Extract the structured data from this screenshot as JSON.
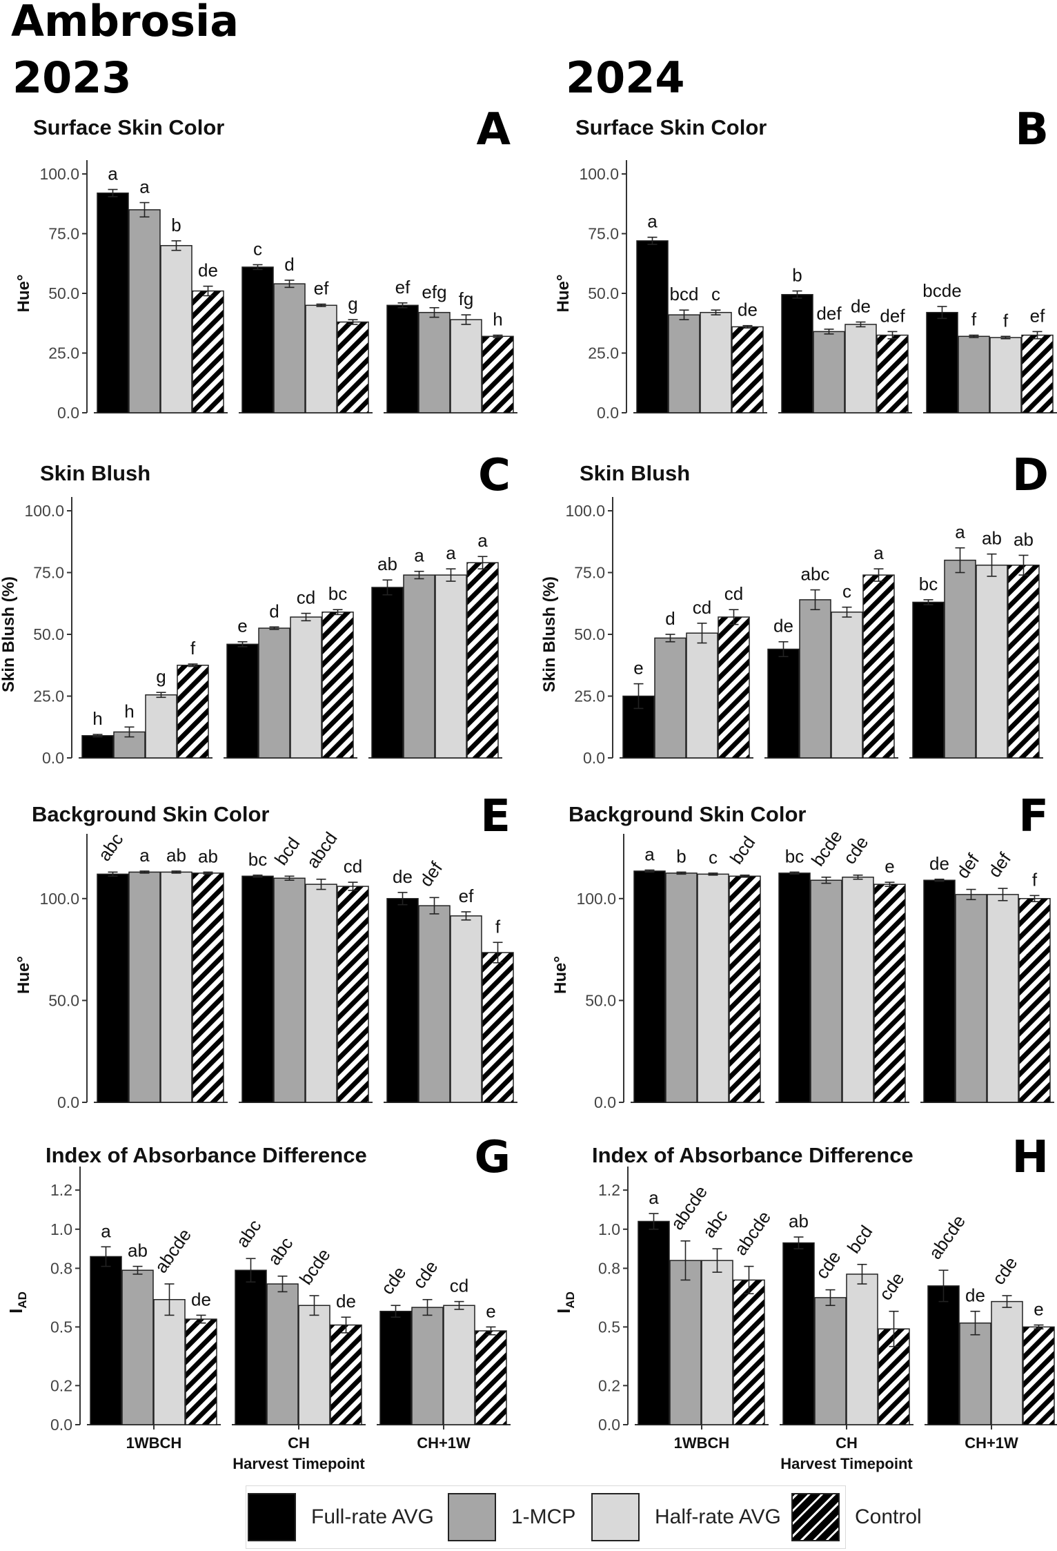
{
  "figure": {
    "cultivar": "Ambrosia",
    "year_left": "2023",
    "year_right": "2024"
  },
  "legend": {
    "items": [
      {
        "label": "Full-rate AVG",
        "fill": "#000000"
      },
      {
        "label": "1-MCP",
        "fill": "#a6a6a6"
      },
      {
        "label": "Half-rate AVG",
        "fill": "#d9d9d9"
      },
      {
        "label": "Control",
        "fill": "hatch"
      }
    ]
  },
  "colors": {
    "full_rate_avg": "#000000",
    "mcp": "#a6a6a6",
    "half_rate_avg": "#d9d9d9",
    "control": "hatch"
  },
  "chart_data": [
    {
      "id": "A",
      "type": "bar",
      "title": "Surface Skin Color",
      "ylabel": "Hue°",
      "ylim": [
        0,
        100
      ],
      "yticks": [
        0,
        25,
        50,
        75,
        100
      ],
      "tick_format": "0.0",
      "groups": [
        "1WBCH",
        "CH",
        "CH+1W"
      ],
      "show_xlabels": false,
      "label_rotate": false,
      "series": [
        {
          "name": "Full-rate AVG",
          "values": [
            92,
            61,
            45
          ],
          "errors": [
            1.5,
            1,
            1
          ],
          "letters": [
            "a",
            "c",
            "ef"
          ]
        },
        {
          "name": "1-MCP",
          "values": [
            85,
            54,
            42
          ],
          "errors": [
            3,
            1.5,
            2
          ],
          "letters": [
            "a",
            "d",
            "efg"
          ]
        },
        {
          "name": "Half-rate AVG",
          "values": [
            70,
            45,
            39
          ],
          "errors": [
            2,
            0.5,
            2
          ],
          "letters": [
            "b",
            "ef",
            "fg"
          ]
        },
        {
          "name": "Control",
          "values": [
            51,
            38,
            32
          ],
          "errors": [
            2,
            1,
            0.5
          ],
          "letters": [
            "de",
            "g",
            "h"
          ]
        }
      ]
    },
    {
      "id": "B",
      "type": "bar",
      "title": "Surface Skin Color",
      "ylabel": "Hue°",
      "ylim": [
        0,
        100
      ],
      "yticks": [
        0,
        25,
        50,
        75,
        100
      ],
      "tick_format": "0.0",
      "groups": [
        "1WBCH",
        "CH",
        "CH+1W"
      ],
      "show_xlabels": false,
      "label_rotate": false,
      "series": [
        {
          "name": "Full-rate AVG",
          "values": [
            72,
            49.5,
            42
          ],
          "errors": [
            1.5,
            1.5,
            2.5
          ],
          "letters": [
            "a",
            "b",
            "bcde"
          ]
        },
        {
          "name": "1-MCP",
          "values": [
            41,
            34,
            32
          ],
          "errors": [
            2,
            1,
            0.5
          ],
          "letters": [
            "bcd",
            "def",
            "f"
          ]
        },
        {
          "name": "Half-rate AVG",
          "values": [
            42,
            37,
            31.5
          ],
          "errors": [
            1,
            1,
            0.5
          ],
          "letters": [
            "c",
            "de",
            "f"
          ]
        },
        {
          "name": "Control",
          "values": [
            36,
            32.5,
            32.5
          ],
          "errors": [
            0.5,
            1.5,
            1.5
          ],
          "letters": [
            "de",
            "def",
            "ef"
          ]
        }
      ]
    },
    {
      "id": "C",
      "type": "bar",
      "title": "Skin Blush",
      "ylabel": "Skin Blush (%)",
      "ylim": [
        0,
        100
      ],
      "yticks": [
        0,
        25,
        50,
        75,
        100
      ],
      "tick_format": "0.0",
      "groups": [
        "1WBCH",
        "CH",
        "CH+1W"
      ],
      "show_xlabels": false,
      "label_rotate": false,
      "series": [
        {
          "name": "Full-rate AVG",
          "values": [
            9,
            46,
            69
          ],
          "errors": [
            0.5,
            1,
            3
          ],
          "letters": [
            "h",
            "e",
            "ab"
          ]
        },
        {
          "name": "1-MCP",
          "values": [
            10.5,
            52.5,
            74
          ],
          "errors": [
            2,
            0.5,
            1.5
          ],
          "letters": [
            "h",
            "d",
            "a"
          ]
        },
        {
          "name": "Half-rate AVG",
          "values": [
            25.5,
            57,
            74
          ],
          "errors": [
            1,
            1.5,
            2.5
          ],
          "letters": [
            "g",
            "cd",
            "a"
          ]
        },
        {
          "name": "Control",
          "values": [
            37.5,
            59,
            79
          ],
          "errors": [
            0.5,
            1,
            2.5
          ],
          "letters": [
            "f",
            "bc",
            "a"
          ]
        }
      ]
    },
    {
      "id": "D",
      "type": "bar",
      "title": "Skin Blush",
      "ylabel": "Skin Blush (%)",
      "ylim": [
        0,
        100
      ],
      "yticks": [
        0,
        25,
        50,
        75,
        100
      ],
      "tick_format": "0.0",
      "groups": [
        "1WBCH",
        "CH",
        "CH+1W"
      ],
      "show_xlabels": false,
      "label_rotate": false,
      "series": [
        {
          "name": "Full-rate AVG",
          "values": [
            25,
            44,
            63
          ],
          "errors": [
            5,
            3,
            1
          ],
          "letters": [
            "e",
            "de",
            "bc"
          ]
        },
        {
          "name": "1-MCP",
          "values": [
            48.5,
            64,
            80
          ],
          "errors": [
            1.5,
            4,
            5
          ],
          "letters": [
            "d",
            "abc",
            "a"
          ]
        },
        {
          "name": "Half-rate AVG",
          "values": [
            50.5,
            59,
            78
          ],
          "errors": [
            4,
            2,
            4.5
          ],
          "letters": [
            "cd",
            "c",
            "ab"
          ]
        },
        {
          "name": "Control",
          "values": [
            57,
            74,
            78
          ],
          "errors": [
            3,
            2.5,
            4
          ],
          "letters": [
            "cd",
            "a",
            "ab"
          ]
        }
      ]
    },
    {
      "id": "E",
      "type": "bar",
      "title": "Background Skin Color",
      "ylabel": "Hue°",
      "ylim": [
        0,
        125
      ],
      "yticks": [
        0,
        50,
        100
      ],
      "tick_format": "0.0",
      "groups": [
        "1WBCH",
        "CH",
        "CH+1W"
      ],
      "show_xlabels": false,
      "label_rotate": true,
      "series": [
        {
          "name": "Full-rate AVG",
          "values": [
            112,
            111,
            100
          ],
          "errors": [
            1,
            0.5,
            3
          ],
          "letters": [
            "abc",
            "bc",
            "de"
          ]
        },
        {
          "name": "1-MCP",
          "values": [
            113,
            110,
            96.5
          ],
          "errors": [
            0.5,
            1,
            4
          ],
          "letters": [
            "a",
            "bcd",
            "def"
          ]
        },
        {
          "name": "Half-rate AVG",
          "values": [
            113,
            107,
            91.5
          ],
          "errors": [
            0.5,
            2.5,
            2
          ],
          "letters": [
            "ab",
            "abcd",
            "ef"
          ]
        },
        {
          "name": "Control",
          "values": [
            112.5,
            106,
            73.5
          ],
          "errors": [
            0.5,
            2,
            5
          ],
          "letters": [
            "ab",
            "cd",
            "f"
          ]
        }
      ]
    },
    {
      "id": "F",
      "type": "bar",
      "title": "Background Skin Color",
      "ylabel": "Hue°",
      "ylim": [
        0,
        125
      ],
      "yticks": [
        0,
        50,
        100
      ],
      "tick_format": "0.0",
      "groups": [
        "1WBCH",
        "CH",
        "CH+1W"
      ],
      "show_xlabels": false,
      "label_rotate": true,
      "series": [
        {
          "name": "Full-rate AVG",
          "values": [
            113.5,
            112.5,
            109
          ],
          "errors": [
            0.5,
            0.5,
            0.5
          ],
          "letters": [
            "a",
            "bc",
            "de"
          ]
        },
        {
          "name": "1-MCP",
          "values": [
            112.5,
            109,
            102
          ],
          "errors": [
            0.5,
            1.5,
            2.5
          ],
          "letters": [
            "b",
            "bcde",
            "def"
          ]
        },
        {
          "name": "Half-rate AVG",
          "values": [
            112,
            110.5,
            102
          ],
          "errors": [
            0.5,
            1,
            3
          ],
          "letters": [
            "c",
            "cde",
            "def"
          ]
        },
        {
          "name": "Control",
          "values": [
            111,
            107,
            100
          ],
          "errors": [
            0.5,
            1,
            1.5
          ],
          "letters": [
            "bcd",
            "e",
            "f"
          ]
        }
      ]
    },
    {
      "id": "G",
      "type": "bar",
      "title": "Index of Absorbance Difference",
      "ylabel": "IAD",
      "ylim": [
        0,
        1.25
      ],
      "yticks": [
        0,
        0.2,
        0.5,
        0.8,
        1.0,
        1.2
      ],
      "tick_format": "0.0",
      "groups": [
        "1WBCH",
        "CH",
        "CH+1W"
      ],
      "show_xlabels": true,
      "xlabel": "Harvest Timepoint",
      "label_rotate": true,
      "series": [
        {
          "name": "Full-rate AVG",
          "values": [
            0.86,
            0.79,
            0.58
          ],
          "errors": [
            0.05,
            0.06,
            0.03
          ],
          "letters": [
            "a",
            "abc",
            "cde"
          ]
        },
        {
          "name": "1-MCP",
          "values": [
            0.79,
            0.72,
            0.6
          ],
          "errors": [
            0.02,
            0.04,
            0.04
          ],
          "letters": [
            "ab",
            "abc",
            "cde"
          ]
        },
        {
          "name": "Half-rate AVG",
          "values": [
            0.64,
            0.61,
            0.61
          ],
          "errors": [
            0.08,
            0.05,
            0.02
          ],
          "letters": [
            "abcde",
            "bcde",
            "cd"
          ]
        },
        {
          "name": "Control",
          "values": [
            0.54,
            0.51,
            0.48
          ],
          "errors": [
            0.02,
            0.04,
            0.02
          ],
          "letters": [
            "de",
            "de",
            "e"
          ]
        }
      ]
    },
    {
      "id": "H",
      "type": "bar",
      "title": "Index of Absorbance Difference",
      "ylabel": "IAD",
      "ylim": [
        0,
        1.25
      ],
      "yticks": [
        0,
        0.2,
        0.5,
        0.8,
        1.0,
        1.2
      ],
      "tick_format": "0.0",
      "groups": [
        "1WBCH",
        "CH",
        "CH+1W"
      ],
      "show_xlabels": true,
      "xlabel": "Harvest Timepoint",
      "label_rotate": true,
      "series": [
        {
          "name": "Full-rate AVG",
          "values": [
            1.04,
            0.93,
            0.71
          ],
          "errors": [
            0.04,
            0.03,
            0.08
          ],
          "letters": [
            "a",
            "ab",
            "abcde"
          ]
        },
        {
          "name": "1-MCP",
          "values": [
            0.84,
            0.65,
            0.52
          ],
          "errors": [
            0.1,
            0.04,
            0.06
          ],
          "letters": [
            "abcde",
            "cde",
            "de"
          ]
        },
        {
          "name": "Half-rate AVG",
          "values": [
            0.84,
            0.77,
            0.63
          ],
          "errors": [
            0.06,
            0.05,
            0.03
          ],
          "letters": [
            "abc",
            "bcd",
            "cde"
          ]
        },
        {
          "name": "Control",
          "values": [
            0.74,
            0.49,
            0.5
          ],
          "errors": [
            0.07,
            0.09,
            0.01
          ],
          "letters": [
            "abcde",
            "cde",
            "e"
          ]
        }
      ]
    }
  ]
}
